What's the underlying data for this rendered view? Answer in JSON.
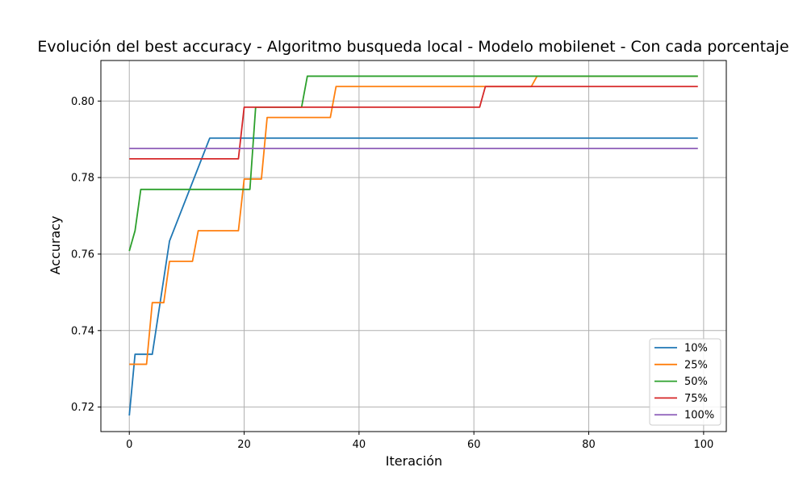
{
  "chart_data": {
    "type": "line",
    "title": "Evolución del best accuracy - Algoritmo busqueda local - Modelo mobilenet - Con cada porcentaje",
    "xlabel": "Iteración",
    "ylabel": "Accuracy",
    "xlim": [
      -4.95,
      103.95
    ],
    "ylim": [
      0.7136,
      0.8106
    ],
    "xticks": [
      0,
      20,
      40,
      60,
      80,
      100
    ],
    "yticks": [
      0.72,
      0.74,
      0.76,
      0.78,
      0.8
    ],
    "ytick_labels": [
      "0.72",
      "0.74",
      "0.76",
      "0.78",
      "0.80"
    ],
    "grid": true,
    "legend_position": "bottom-right",
    "series": [
      {
        "name": "10%",
        "color": "#1f77b4",
        "x": [
          0,
          1,
          4,
          7,
          14,
          99
        ],
        "y": [
          0.7178,
          0.7338,
          0.7338,
          0.7634,
          0.7903,
          0.7903
        ]
      },
      {
        "name": "25%",
        "color": "#ff7f0e",
        "x": [
          0,
          3,
          4,
          6,
          7,
          11,
          12,
          19,
          20,
          23,
          24,
          35,
          36,
          70,
          71,
          99
        ],
        "y": [
          0.7312,
          0.7312,
          0.7473,
          0.7473,
          0.7581,
          0.7581,
          0.7661,
          0.7661,
          0.7796,
          0.7796,
          0.7957,
          0.7957,
          0.8038,
          0.8038,
          0.8065,
          0.8065
        ]
      },
      {
        "name": "50%",
        "color": "#2ca02c",
        "x": [
          0,
          1,
          2,
          21,
          22,
          30,
          31,
          99
        ],
        "y": [
          0.7608,
          0.7661,
          0.7769,
          0.7769,
          0.7984,
          0.7984,
          0.8065,
          0.8065
        ]
      },
      {
        "name": "75%",
        "color": "#d62728",
        "x": [
          0,
          19,
          20,
          61,
          62,
          99
        ],
        "y": [
          0.7849,
          0.7849,
          0.7984,
          0.7984,
          0.8038,
          0.8038
        ]
      },
      {
        "name": "100%",
        "color": "#9467bd",
        "x": [
          0,
          99
        ],
        "y": [
          0.7876,
          0.7876
        ]
      }
    ]
  }
}
